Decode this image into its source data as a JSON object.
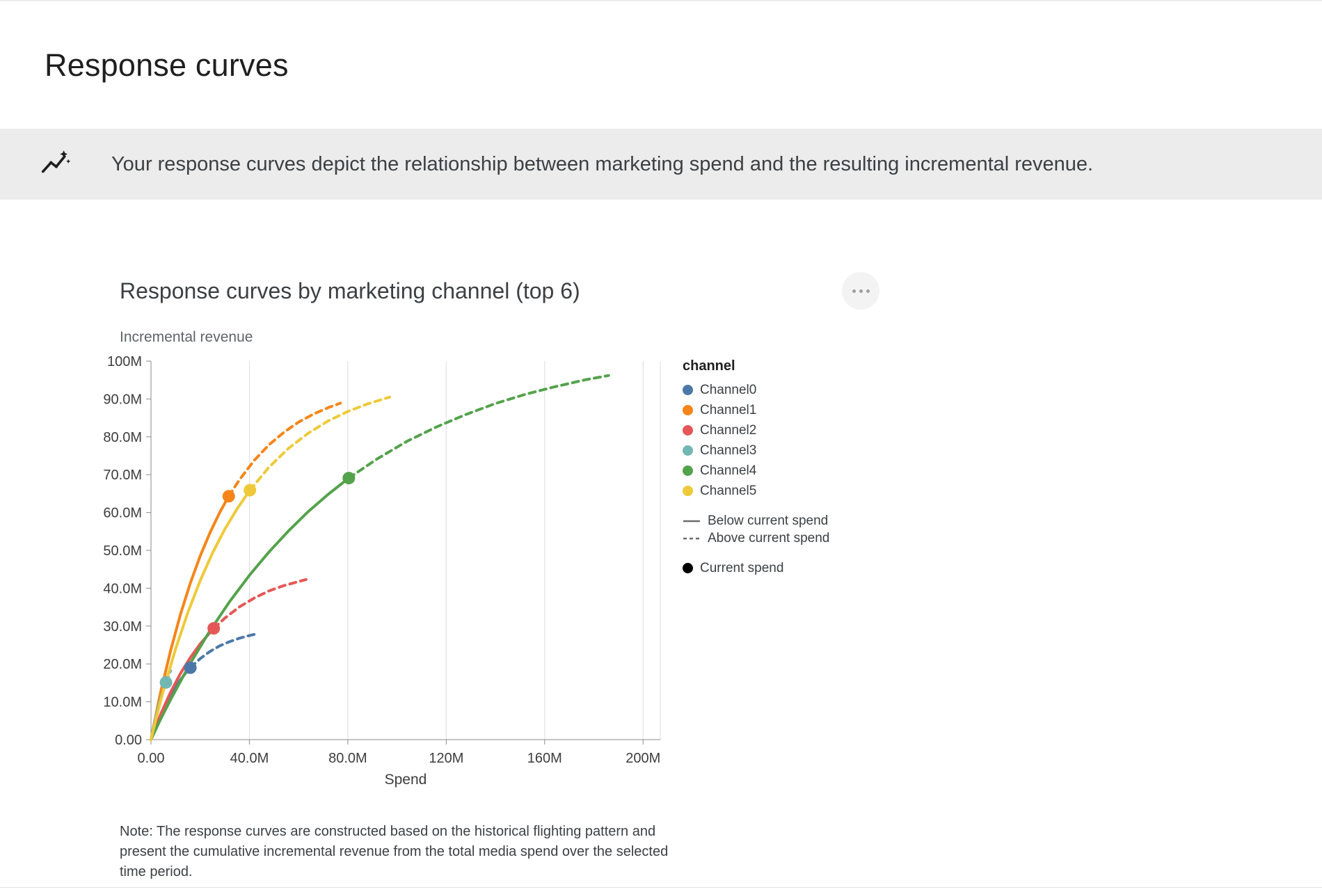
{
  "page": {
    "title": "Response curves"
  },
  "banner": {
    "icon": "insights-icon",
    "text": "Your response curves depict the relationship between marketing spend and the resulting incremental revenue."
  },
  "card": {
    "note": "Note: The response curves are constructed based on the historical flighting pattern and present the cumulative incremental revenue from the total media spend over the selected time period."
  },
  "chart_data": {
    "type": "line",
    "title": "Response curves by marketing channel (top 6)",
    "xlabel": "Spend",
    "ylabel": "Incremental revenue",
    "units": "M",
    "xlim": [
      0,
      207
    ],
    "ylim": [
      0,
      100
    ],
    "grid": "vertical-only",
    "legend_position": "right",
    "x_tick_values": [
      0,
      40,
      80,
      120,
      160,
      200
    ],
    "x_tick_labels": [
      "0.00",
      "40.0M",
      "80.0M",
      "120M",
      "160M",
      "200M"
    ],
    "y_tick_values": [
      0,
      10,
      20,
      30,
      40,
      50,
      60,
      70,
      80,
      90,
      100
    ],
    "y_tick_labels": [
      "0.00",
      "10.0M",
      "20.0M",
      "30.0M",
      "40.0M",
      "50.0M",
      "60.0M",
      "70.0M",
      "80.0M",
      "90.0M",
      "100M"
    ],
    "legend": {
      "title": "channel",
      "below_label": "Below current spend",
      "above_label": "Above current spend",
      "current_label": "Current spend"
    },
    "series": [
      {
        "name": "Channel0",
        "color": "#4c78a8",
        "current_spend_m": [
          16,
          19.0
        ],
        "below_current_spend": [
          [
            0,
            0
          ],
          [
            1,
            1.8
          ],
          [
            2,
            3.5
          ],
          [
            4,
            6.6
          ],
          [
            6,
            9.4
          ],
          [
            8,
            11.8
          ],
          [
            10,
            13.9
          ],
          [
            12,
            15.8
          ],
          [
            14,
            17.5
          ],
          [
            16,
            19.0
          ]
        ],
        "above_current_spend": [
          [
            16,
            19.0
          ],
          [
            20,
            21.4
          ],
          [
            24,
            23.3
          ],
          [
            28,
            24.8
          ],
          [
            32,
            25.9
          ],
          [
            36,
            26.8
          ],
          [
            40,
            27.5
          ],
          [
            42,
            27.8
          ]
        ]
      },
      {
        "name": "Channel1",
        "color": "#f58518",
        "current_spend_m": [
          31.6,
          64.3
        ],
        "below_current_spend": [
          [
            0,
            0
          ],
          [
            1,
            3.3
          ],
          [
            2,
            6.5
          ],
          [
            3,
            9.7
          ],
          [
            4,
            12.7
          ],
          [
            8,
            23.6
          ],
          [
            12,
            33.1
          ],
          [
            16,
            41.4
          ],
          [
            20,
            48.5
          ],
          [
            24,
            54.7
          ],
          [
            28,
            60.1
          ],
          [
            31.6,
            64.3
          ]
        ],
        "above_current_spend": [
          [
            31.6,
            64.3
          ],
          [
            36,
            68.7
          ],
          [
            42,
            73.8
          ],
          [
            48,
            77.9
          ],
          [
            54,
            81.2
          ],
          [
            60,
            83.9
          ],
          [
            66,
            86.0
          ],
          [
            72,
            87.7
          ],
          [
            77,
            88.9
          ]
        ]
      },
      {
        "name": "Channel2",
        "color": "#e45756",
        "current_spend_m": [
          25.5,
          29.4
        ],
        "below_current_spend": [
          [
            0,
            0
          ],
          [
            1,
            1.8
          ],
          [
            2,
            3.5
          ],
          [
            4,
            6.8
          ],
          [
            8,
            12.6
          ],
          [
            12,
            17.5
          ],
          [
            16,
            21.7
          ],
          [
            20,
            25.3
          ],
          [
            25.5,
            29.4
          ]
        ],
        "above_current_spend": [
          [
            25.5,
            29.4
          ],
          [
            30,
            32.1
          ],
          [
            36,
            35.1
          ],
          [
            42,
            37.4
          ],
          [
            48,
            39.3
          ],
          [
            54,
            40.7
          ],
          [
            63,
            42.3
          ]
        ]
      },
      {
        "name": "Channel3",
        "color": "#72b7b2",
        "current_spend_m": [
          6.1,
          15.1
        ],
        "below_current_spend": [
          [
            0,
            0
          ],
          [
            1,
            3.1
          ],
          [
            2,
            6.0
          ],
          [
            3,
            8.6
          ],
          [
            4,
            10.9
          ],
          [
            5,
            13.0
          ],
          [
            6.1,
            15.1
          ]
        ],
        "above_current_spend": [
          [
            6.1,
            15.1
          ],
          [
            7,
            16.6
          ],
          [
            8,
            18.2
          ]
        ]
      },
      {
        "name": "Channel4",
        "color": "#54a24b",
        "current_spend_m": [
          80.4,
          69.1
        ],
        "below_current_spend": [
          [
            0,
            0
          ],
          [
            2,
            2.8
          ],
          [
            4,
            5.5
          ],
          [
            8,
            10.6
          ],
          [
            16,
            20.2
          ],
          [
            24,
            28.8
          ],
          [
            32,
            36.5
          ],
          [
            40,
            43.4
          ],
          [
            48,
            49.6
          ],
          [
            56,
            55.2
          ],
          [
            64,
            60.3
          ],
          [
            72,
            64.8
          ],
          [
            80.4,
            69.1
          ]
        ],
        "above_current_spend": [
          [
            80.4,
            69.1
          ],
          [
            92,
            74.2
          ],
          [
            104,
            78.8
          ],
          [
            116,
            82.6
          ],
          [
            128,
            85.9
          ],
          [
            140,
            88.8
          ],
          [
            152,
            91.2
          ],
          [
            164,
            93.2
          ],
          [
            176,
            95.0
          ],
          [
            186,
            96.2
          ]
        ]
      },
      {
        "name": "Channel5",
        "color": "#eeca3b",
        "current_spend_m": [
          40.2,
          65.9
        ],
        "below_current_spend": [
          [
            0,
            0
          ],
          [
            1,
            2.7
          ],
          [
            2,
            5.4
          ],
          [
            3,
            7.9
          ],
          [
            5,
            12.9
          ],
          [
            10,
            24.0
          ],
          [
            15,
            33.6
          ],
          [
            20,
            42.0
          ],
          [
            25,
            49.3
          ],
          [
            30,
            55.6
          ],
          [
            35,
            61.0
          ],
          [
            40.2,
            65.9
          ]
        ],
        "above_current_spend": [
          [
            40.2,
            65.9
          ],
          [
            48,
            72.0
          ],
          [
            56,
            77.0
          ],
          [
            64,
            81.0
          ],
          [
            72,
            84.2
          ],
          [
            80,
            86.7
          ],
          [
            88,
            88.7
          ],
          [
            97,
            90.5
          ]
        ]
      }
    ]
  }
}
